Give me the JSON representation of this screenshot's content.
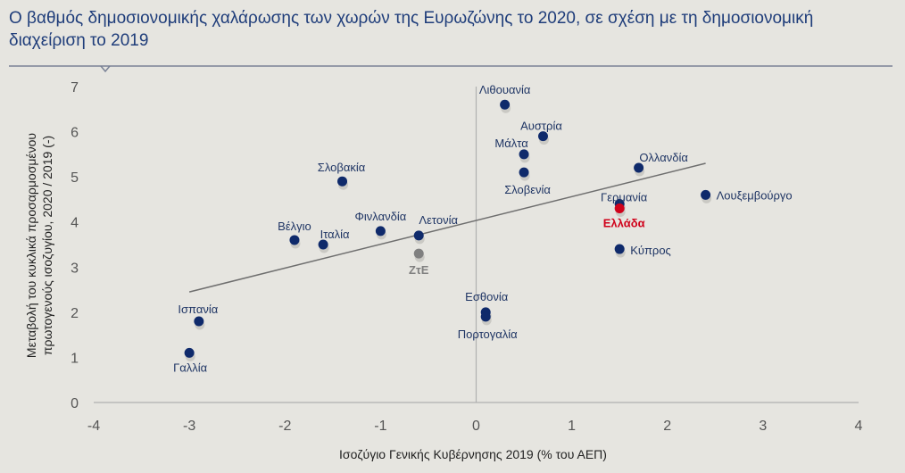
{
  "title": "Ο βαθμός δημοσιονομικής χαλάρωσης των χωρών της Ευρωζώνης το 2020, σε σχέση με τη δημοσιονομική διαχείριση το 2019",
  "chart_data": {
    "type": "scatter",
    "title": "Ο βαθμός δημοσιονομικής χαλάρωσης των χωρών της Ευρωζώνης το 2020, σε σχέση με τη δημοσιονομική διαχείριση το 2019",
    "xlabel": "Ισοζύγιο Γενικής Κυβέρνησης 2019 (% του ΑΕΠ)",
    "ylabel_line1": "Μεταβολή του κυκλικά προσαρμοσμένου",
    "ylabel_line2": "πρωτογενούς ισοζυγίου, 2020 / 2019 (-)",
    "xlim": [
      -4,
      4
    ],
    "ylim": [
      0,
      7
    ],
    "xticks": [
      "-4",
      "-3",
      "-2",
      "-1",
      "0",
      "1",
      "2",
      "3",
      "4"
    ],
    "yticks": [
      "0",
      "1",
      "2",
      "3",
      "4",
      "5",
      "6",
      "7"
    ],
    "grid": false,
    "colors": {
      "default": "#0f2a6b",
      "greece": "#d0021b",
      "euro_area": "#808080",
      "trendline": "#6e6e6e",
      "title": "#1f3d7a"
    },
    "points": [
      {
        "label": "Λιθουανία",
        "x": 0.3,
        "y": 6.6,
        "color": "#0f2a6b"
      },
      {
        "label": "Αυστρία",
        "x": 0.7,
        "y": 5.9,
        "color": "#0f2a6b"
      },
      {
        "label": "Μάλτα",
        "x": 0.5,
        "y": 5.5,
        "color": "#0f2a6b"
      },
      {
        "label": "Σλοβενία",
        "x": 0.5,
        "y": 5.1,
        "color": "#0f2a6b"
      },
      {
        "label": "Ολλανδία",
        "x": 1.7,
        "y": 5.2,
        "color": "#0f2a6b"
      },
      {
        "label": "Γερμανία",
        "x": 1.5,
        "y": 4.4,
        "color": "#0f2a6b"
      },
      {
        "label": "Ελλάδα",
        "x": 1.5,
        "y": 4.3,
        "color": "#d0021b"
      },
      {
        "label": "Λουξεμβούργο",
        "x": 2.4,
        "y": 4.6,
        "color": "#0f2a6b"
      },
      {
        "label": "Κύπρος",
        "x": 1.5,
        "y": 3.4,
        "color": "#0f2a6b"
      },
      {
        "label": "Σλοβακία",
        "x": -1.4,
        "y": 4.9,
        "color": "#0f2a6b"
      },
      {
        "label": "Φινλανδία",
        "x": -1.0,
        "y": 3.8,
        "color": "#0f2a6b"
      },
      {
        "label": "Λετονία",
        "x": -0.6,
        "y": 3.7,
        "color": "#0f2a6b"
      },
      {
        "label": "ΖτΕ",
        "x": -0.6,
        "y": 3.3,
        "color": "#808080"
      },
      {
        "label": "Βέλγιο",
        "x": -1.9,
        "y": 3.6,
        "color": "#0f2a6b"
      },
      {
        "label": "Ιταλία",
        "x": -1.6,
        "y": 3.5,
        "color": "#0f2a6b"
      },
      {
        "label": "Ισπανία",
        "x": -2.9,
        "y": 1.8,
        "color": "#0f2a6b"
      },
      {
        "label": "Γαλλία",
        "x": -3.0,
        "y": 1.1,
        "color": "#0f2a6b"
      },
      {
        "label": "Εσθονία",
        "x": 0.1,
        "y": 2.0,
        "color": "#0f2a6b"
      },
      {
        "label": "Πορτογαλία",
        "x": 0.1,
        "y": 1.9,
        "color": "#0f2a6b"
      }
    ],
    "trendline": {
      "x": [
        -3.0,
        2.4
      ],
      "y": [
        2.45,
        5.3
      ]
    }
  }
}
